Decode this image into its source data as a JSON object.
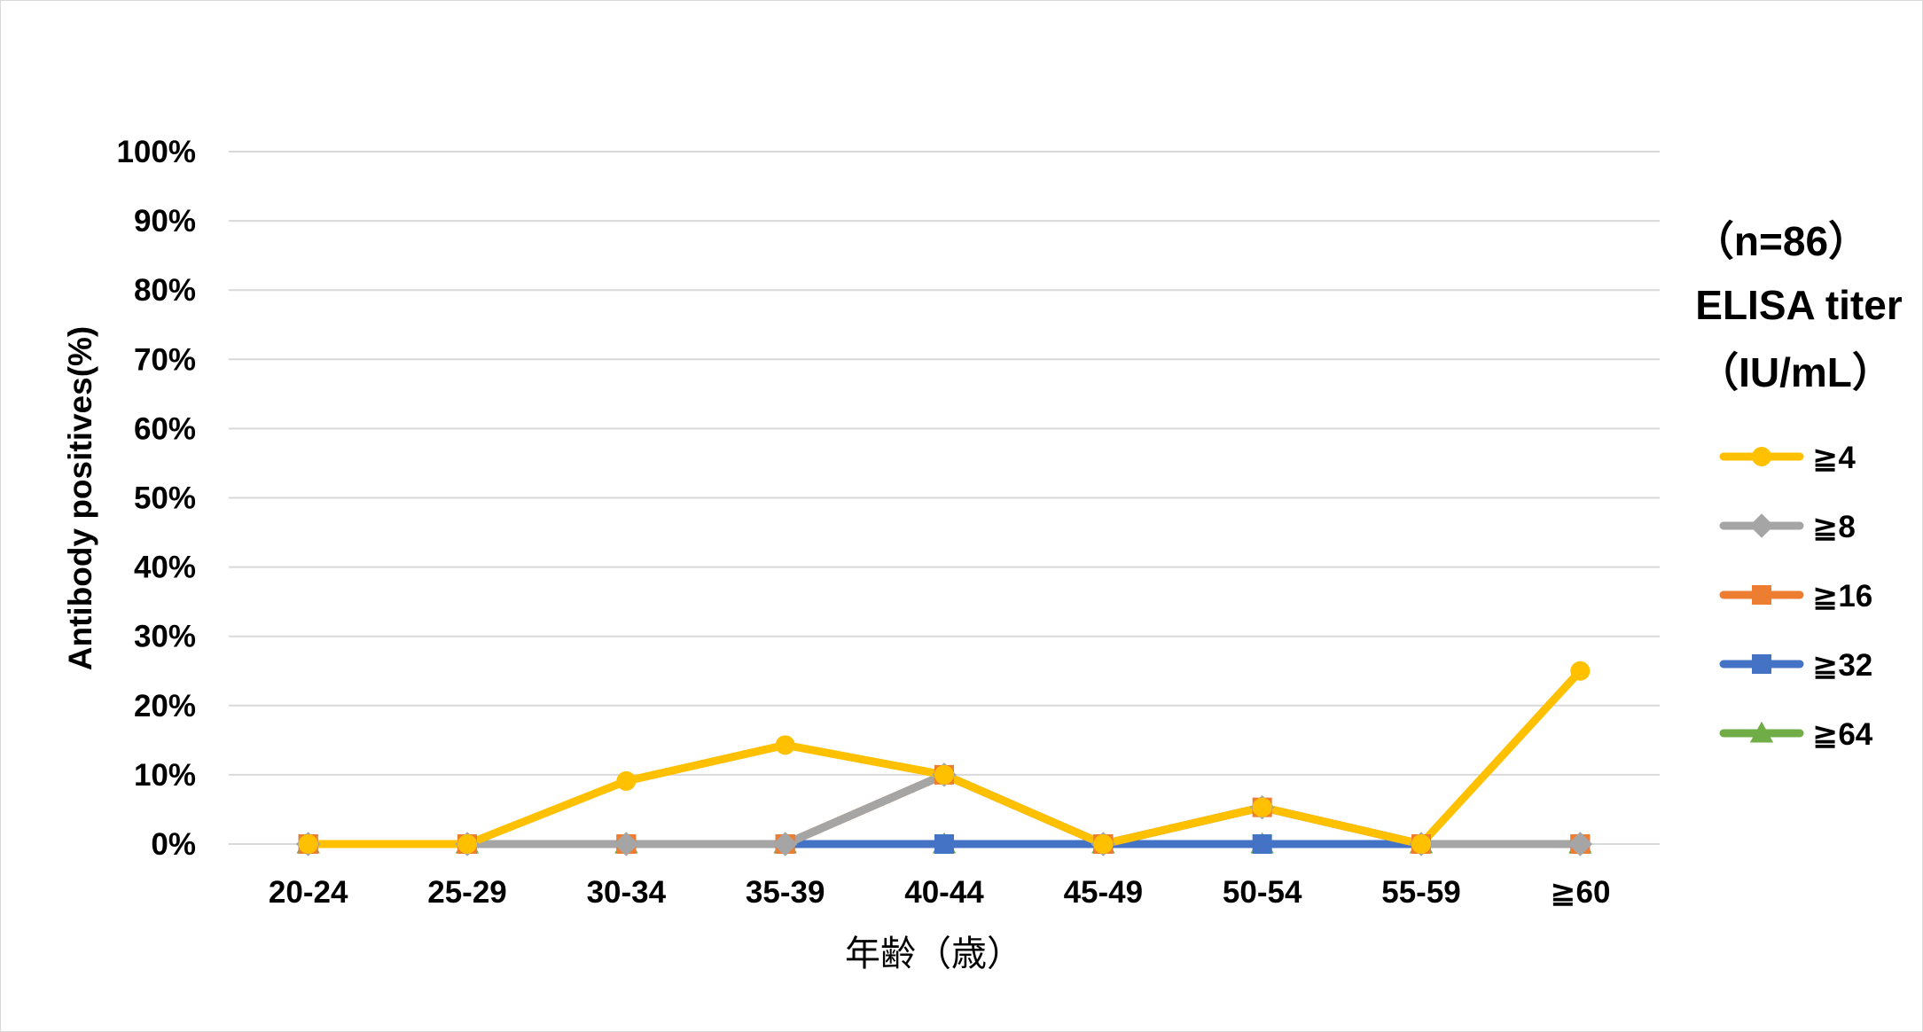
{
  "chart_data": {
    "type": "line",
    "title": "",
    "xlabel": "年齢（歳）",
    "ylabel": "Antibody positives(%)",
    "ylim": [
      0,
      100
    ],
    "yticks": [
      "0%",
      "10%",
      "20%",
      "30%",
      "40%",
      "50%",
      "60%",
      "70%",
      "80%",
      "90%",
      "100%"
    ],
    "categories": [
      "20-24",
      "25-29",
      "30-34",
      "35-39",
      "40-44",
      "45-49",
      "50-54",
      "55-59",
      "≧60"
    ],
    "grid": true,
    "legend_position": "right",
    "legend_header": [
      "（n=86）",
      "ELISA titer",
      "（IU/mL）"
    ],
    "series": [
      {
        "name": "≧4",
        "color": "#FFC000",
        "marker": "circle",
        "values": [
          0,
          0,
          9.1,
          14.3,
          10,
          0,
          5.3,
          0,
          25
        ]
      },
      {
        "name": "≧8",
        "color": "#A5A5A5",
        "marker": "diamond",
        "values": [
          0,
          0,
          0,
          0,
          10,
          0,
          5.3,
          0,
          0
        ]
      },
      {
        "name": "≧16",
        "color": "#ED7D31",
        "marker": "square",
        "values": [
          0,
          0,
          0,
          0,
          10,
          0,
          5.3,
          0,
          0
        ]
      },
      {
        "name": "≧32",
        "color": "#4472C4",
        "marker": "square",
        "values": [
          0,
          0,
          0,
          0,
          0,
          0,
          0,
          0,
          0
        ]
      },
      {
        "name": "≧64",
        "color": "#70AD47",
        "marker": "triangle",
        "values": [
          0,
          0,
          0,
          0,
          0,
          0,
          0,
          0,
          0
        ]
      }
    ]
  }
}
